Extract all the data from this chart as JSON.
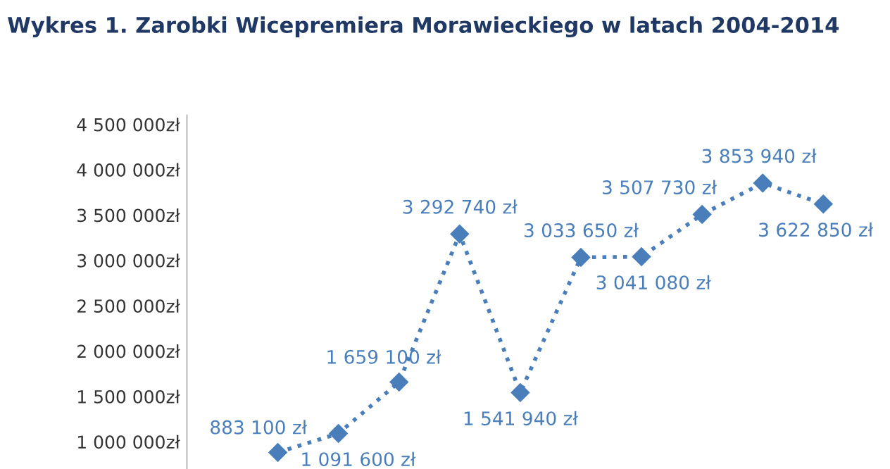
{
  "chart_data": {
    "type": "line",
    "title": "Wykres 1. Zarobki Wicepremiera Morawieckiego w latach 2004-2014",
    "categories": [
      null,
      null,
      null,
      null,
      null,
      null,
      null,
      null,
      null,
      null,
      null
    ],
    "series": [
      {
        "color": "#4a7ebb",
        "values": [
          null,
          883100,
          1091600,
          1659100,
          3292740,
          1541940,
          3033650,
          3041080,
          3507730,
          3853940,
          3622850
        ],
        "value_labels": [
          null,
          "883 100 zł",
          "1 091 600 zł",
          "1 659 100 zł",
          "3 292 740 zł",
          "1 541 940 zł",
          "3 033 650 zł",
          "3 041 080 zł",
          "3 507 730 zł",
          "3 853 940 zł",
          "3 622 850 zł"
        ]
      }
    ],
    "ylim": [
      700000,
      4600000
    ],
    "yticks": [
      {
        "value": 1000000,
        "label": "1 000 000zł"
      },
      {
        "value": 1500000,
        "label": "1 500 000zł"
      },
      {
        "value": 2000000,
        "label": "2 000 000zł"
      },
      {
        "value": 2500000,
        "label": "2 500 000zł"
      },
      {
        "value": 3000000,
        "label": "3 000 000zł"
      },
      {
        "value": 3500000,
        "label": "3 500 000zł"
      },
      {
        "value": 4000000,
        "label": "4 000 000zł"
      },
      {
        "value": 4500000,
        "label": "4 500 000zł"
      }
    ],
    "tick_labels": "y",
    "grid": false,
    "legend": false,
    "marker": "diamond",
    "line_style": "dotted"
  }
}
